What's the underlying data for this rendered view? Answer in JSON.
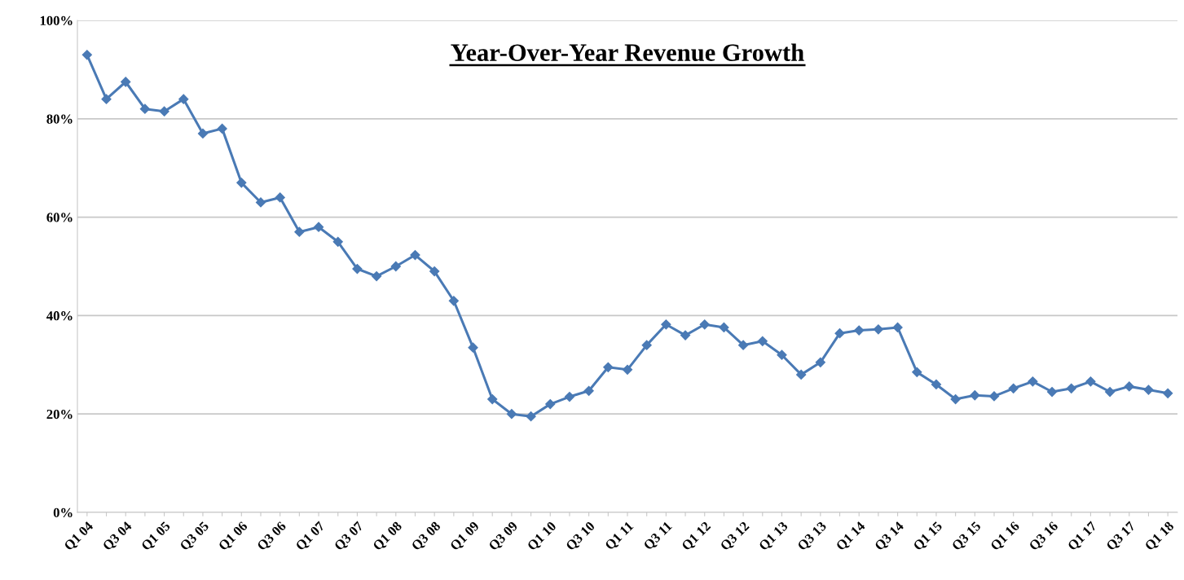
{
  "chart_data": {
    "type": "line",
    "title": "Year-Over-Year Revenue Growth",
    "categories": [
      "Q1 04",
      null,
      "Q3 04",
      null,
      "Q1 05",
      null,
      "Q3 05",
      null,
      "Q1 06",
      null,
      "Q3 06",
      null,
      "Q1 07",
      null,
      "Q3 07",
      null,
      "Q1 08",
      null,
      "Q3 08",
      null,
      "Q1 09",
      null,
      "Q3 09",
      null,
      "Q1 10",
      null,
      "Q3 10",
      null,
      "Q1 11",
      null,
      "Q3 11",
      null,
      "Q1 12",
      null,
      "Q3 12",
      null,
      "Q1 13",
      null,
      "Q3 13",
      null,
      "Q1 14",
      null,
      "Q3 14",
      null,
      "Q1 15",
      null,
      "Q3 15",
      null,
      "Q1 16",
      null,
      "Q3 16",
      null,
      "Q1 17",
      null,
      "Q3 17",
      null,
      "Q1 18"
    ],
    "series": [
      {
        "color": "#4a7ab5",
        "values": [
          93,
          84,
          87.5,
          82,
          81.5,
          84,
          77,
          78,
          67,
          63,
          64,
          57,
          58,
          55,
          49.5,
          48,
          50,
          52.3,
          49,
          43,
          33.5,
          23,
          20,
          19.5,
          22,
          23.5,
          24.7,
          29.5,
          29,
          34,
          38.2,
          36,
          38.2,
          37.6,
          34,
          34.8,
          32,
          28,
          30.5,
          36.4,
          37,
          37.2,
          37.6,
          28.5,
          26,
          23,
          23.8,
          23.6,
          25.2,
          26.6,
          24.5,
          25.2,
          26.6,
          24.5,
          25.6,
          24.9,
          24.2
        ]
      }
    ],
    "ylim": [
      0,
      100
    ],
    "yticks": [
      {
        "value": 0,
        "label": "0%"
      },
      {
        "value": 20,
        "label": "20%"
      },
      {
        "value": 40,
        "label": "40%"
      },
      {
        "value": 60,
        "label": "60%"
      },
      {
        "value": 80,
        "label": "80%"
      },
      {
        "value": 100,
        "label": "100%"
      }
    ],
    "grid": "y",
    "marker": "diamond",
    "line_style": "solid"
  }
}
